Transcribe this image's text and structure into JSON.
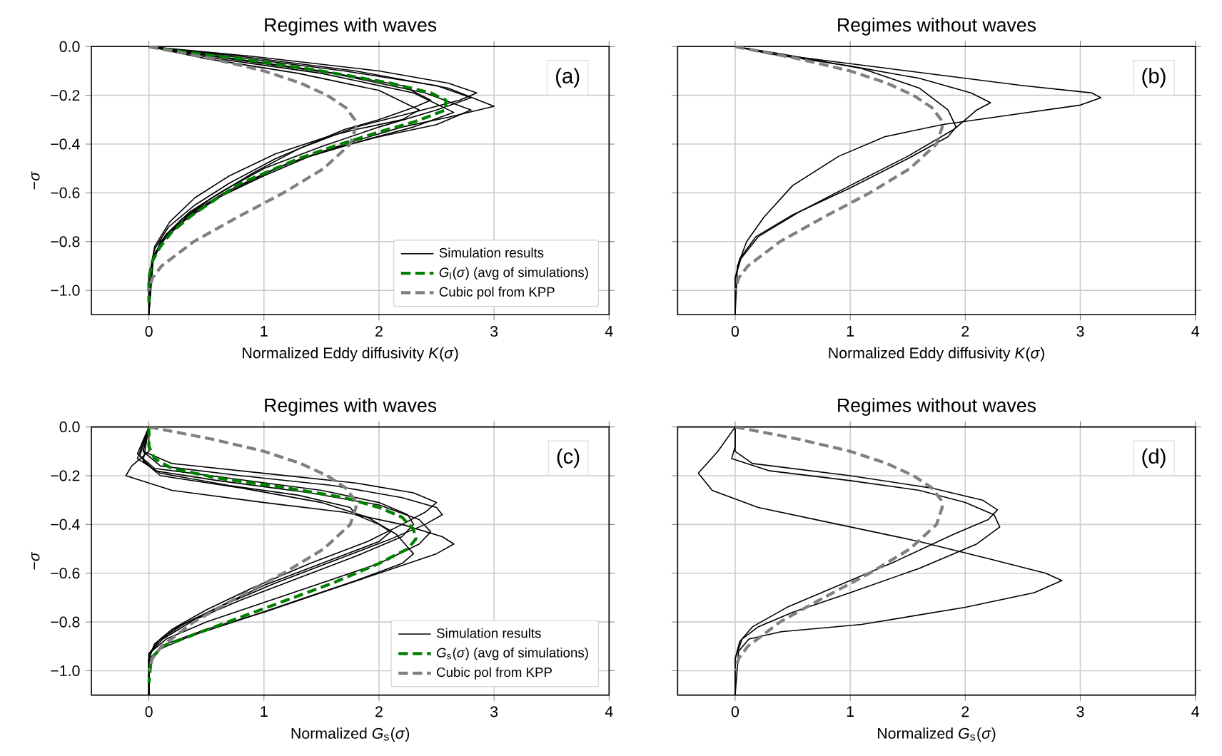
{
  "chart_data": [
    {
      "type": "line",
      "title": "Regimes with waves",
      "xlabel": "Normalized Eddy diffusivity *K*(*σ*)",
      "ylabel": "−*σ*",
      "annotations": [
        "(a)"
      ],
      "xlim": [
        -0.5,
        4
      ],
      "ylim": [
        -1.1,
        0
      ],
      "xticks": [
        0,
        1,
        2,
        3,
        4
      ],
      "yticks": [
        {
          "value": 0,
          "label": "0.0"
        },
        {
          "value": -0.2,
          "label": "−0.2"
        },
        {
          "value": -0.4,
          "label": "−0.4"
        },
        {
          "value": -0.6,
          "label": "−0.6"
        },
        {
          "value": -0.8,
          "label": "−0.8"
        },
        {
          "value": -1.0,
          "label": "−1.0"
        }
      ],
      "grid": true,
      "legend": "bottom right",
      "series": [
        {
          "name": "Simulation results",
          "color": "#000000",
          "line_style": "solid",
          "x": [
            0,
            0.8,
            1.8,
            2.6,
            3.0,
            2.6,
            2.2,
            1.7,
            1.2,
            0.8,
            0.45,
            0.2,
            0.06,
            0,
            0
          ],
          "values": [
            0,
            -0.04,
            -0.1,
            -0.17,
            -0.245,
            -0.29,
            -0.33,
            -0.4,
            -0.48,
            -0.57,
            -0.66,
            -0.75,
            -0.84,
            -0.95,
            -1.1
          ]
        },
        {
          "color": "#000000",
          "line_style": "solid",
          "x": [
            0,
            0.9,
            2.0,
            2.6,
            2.85,
            2.7,
            2.3,
            1.8,
            1.3,
            0.9,
            0.55,
            0.28,
            0.1,
            0.02,
            0
          ],
          "values": [
            0,
            -0.04,
            -0.1,
            -0.15,
            -0.19,
            -0.22,
            -0.27,
            -0.33,
            -0.42,
            -0.52,
            -0.62,
            -0.71,
            -0.8,
            -0.9,
            -1.1
          ]
        },
        {
          "color": "#000000",
          "line_style": "solid",
          "x": [
            0,
            0.7,
            1.7,
            2.5,
            2.8,
            2.5,
            2.0,
            1.5,
            1.0,
            0.65,
            0.35,
            0.15,
            0.04,
            0
          ],
          "values": [
            0,
            -0.04,
            -0.1,
            -0.16,
            -0.21,
            -0.26,
            -0.33,
            -0.41,
            -0.5,
            -0.59,
            -0.68,
            -0.77,
            -0.86,
            -1.1
          ]
        },
        {
          "color": "#000000",
          "line_style": "solid",
          "x": [
            0,
            0.6,
            1.5,
            2.3,
            2.65,
            2.3,
            1.9,
            1.4,
            1.0,
            0.6,
            0.32,
            0.13,
            0.03,
            0
          ],
          "values": [
            0,
            -0.05,
            -0.11,
            -0.19,
            -0.27,
            -0.33,
            -0.38,
            -0.45,
            -0.53,
            -0.62,
            -0.71,
            -0.79,
            -0.88,
            -1.1
          ]
        },
        {
          "color": "#000000",
          "line_style": "solid",
          "x": [
            0,
            0.6,
            1.5,
            2.2,
            2.45,
            2.3,
            2.0,
            1.7,
            1.55,
            1.1,
            0.7,
            0.4,
            0.17,
            0.05,
            0,
            0
          ],
          "values": [
            0,
            -0.04,
            -0.1,
            -0.16,
            -0.22,
            -0.25,
            -0.3,
            -0.34,
            -0.37,
            -0.46,
            -0.56,
            -0.65,
            -0.74,
            -0.83,
            -0.95,
            -1.1
          ]
        },
        {
          "color": "#000000",
          "line_style": "solid",
          "x": [
            0,
            0.5,
            1.3,
            2.0,
            2.35,
            2.2,
            1.8,
            1.55,
            1.1,
            0.7,
            0.4,
            0.18,
            0.05,
            0,
            0
          ],
          "values": [
            0,
            -0.05,
            -0.11,
            -0.18,
            -0.26,
            -0.3,
            -0.34,
            -0.37,
            -0.44,
            -0.53,
            -0.62,
            -0.72,
            -0.82,
            -0.95,
            -1.1
          ]
        },
        {
          "color": "#000000",
          "line_style": "solid",
          "x": [
            0,
            0.7,
            1.6,
            2.4,
            2.8,
            2.5,
            2.0,
            1.5,
            1.05,
            0.65,
            0.35,
            0.14,
            0.03,
            0
          ],
          "values": [
            0,
            -0.05,
            -0.11,
            -0.19,
            -0.26,
            -0.32,
            -0.37,
            -0.43,
            -0.51,
            -0.6,
            -0.69,
            -0.78,
            -0.87,
            -1.1
          ]
        },
        {
          "name": "*G*$_{l}$(*σ*) (avg of simulations)",
          "color": "#008000",
          "line_style": "dashed",
          "x": [
            0,
            0.35,
            0.8,
            1.5,
            2.1,
            2.45,
            2.58,
            2.58,
            2.3,
            2.0,
            1.6,
            1.3,
            1.05,
            0.8,
            0.6,
            0.38,
            0.2,
            0.1,
            0.03,
            0,
            0
          ],
          "values": [
            0,
            -0.025,
            -0.05,
            -0.1,
            -0.15,
            -0.19,
            -0.22,
            -0.26,
            -0.31,
            -0.35,
            -0.41,
            -0.46,
            -0.51,
            -0.56,
            -0.62,
            -0.69,
            -0.76,
            -0.82,
            -0.88,
            -0.95,
            -1.05
          ]
        },
        {
          "name": "Cubic pol from KPP",
          "color": "#808080",
          "line_style": "dashed",
          "x": [
            0,
            0.55,
            1.0,
            1.32,
            1.55,
            1.71,
            1.79,
            1.8,
            1.75,
            1.52,
            1.17,
            0.77,
            0.39,
            0.11,
            0.03,
            0
          ],
          "values": [
            0,
            -0.05,
            -0.1,
            -0.15,
            -0.2,
            -0.25,
            -0.3,
            -0.33,
            -0.4,
            -0.5,
            -0.6,
            -0.7,
            -0.8,
            -0.9,
            -0.95,
            -1.0
          ]
        }
      ]
    },
    {
      "type": "line",
      "title": "Regimes without waves",
      "xlabel": "Normalized Eddy diffusivity *K*(*σ*)",
      "annotations": [
        "(b)"
      ],
      "xlim": [
        -0.5,
        4
      ],
      "ylim": [
        -1.1,
        0
      ],
      "xticks": [
        0,
        1,
        2,
        3,
        4
      ],
      "yticks": [
        {
          "value": 0,
          "label": null
        },
        {
          "value": -0.2,
          "label": null
        },
        {
          "value": -0.4,
          "label": null
        },
        {
          "value": -0.6,
          "label": null
        },
        {
          "value": -0.8,
          "label": null
        },
        {
          "value": -1.0,
          "label": null
        }
      ],
      "grid": true,
      "tick_labels": "x",
      "series": [
        {
          "color": "#000000",
          "line_style": "solid",
          "x": [
            0,
            0.5,
            1.5,
            2.5,
            3.1,
            3.18,
            3.0,
            2.4,
            1.8,
            1.3,
            0.9,
            0.5,
            0.25,
            0.1,
            0.02,
            0
          ],
          "values": [
            0,
            -0.04,
            -0.1,
            -0.16,
            -0.19,
            -0.21,
            -0.24,
            -0.28,
            -0.32,
            -0.37,
            -0.45,
            -0.57,
            -0.7,
            -0.8,
            -0.9,
            -1.1
          ]
        },
        {
          "color": "#000000",
          "line_style": "solid",
          "x": [
            0,
            0.3,
            1.0,
            1.6,
            2.05,
            2.22,
            2.1,
            2.05,
            1.9,
            1.5,
            1.0,
            0.55,
            0.2,
            0.05,
            0,
            0
          ],
          "values": [
            0,
            -0.03,
            -0.08,
            -0.13,
            -0.19,
            -0.23,
            -0.26,
            -0.28,
            -0.34,
            -0.45,
            -0.57,
            -0.68,
            -0.78,
            -0.87,
            -0.95,
            -1.1
          ]
        },
        {
          "color": "#000000",
          "line_style": "solid",
          "x": [
            0,
            0.4,
            1.1,
            1.6,
            1.85,
            1.92,
            1.85,
            1.5,
            1.0,
            0.5,
            0.18,
            0.04,
            0,
            0
          ],
          "values": [
            0,
            -0.03,
            -0.09,
            -0.17,
            -0.26,
            -0.33,
            -0.37,
            -0.46,
            -0.58,
            -0.69,
            -0.78,
            -0.87,
            -0.95,
            -1.1
          ]
        },
        {
          "color": "#808080",
          "line_style": "dashed",
          "x": [
            0,
            0.55,
            1.0,
            1.32,
            1.55,
            1.71,
            1.79,
            1.8,
            1.75,
            1.52,
            1.17,
            0.77,
            0.39,
            0.11,
            0.03,
            0
          ],
          "values": [
            0,
            -0.05,
            -0.1,
            -0.15,
            -0.2,
            -0.25,
            -0.3,
            -0.33,
            -0.4,
            -0.5,
            -0.6,
            -0.7,
            -0.8,
            -0.9,
            -0.95,
            -1.0
          ]
        }
      ]
    },
    {
      "type": "line",
      "title": "Regimes with waves",
      "xlabel": "Normalized *G*$_{s}$(*σ*)",
      "ylabel": "−*σ*",
      "annotations": [
        "(c)"
      ],
      "xlim": [
        -0.5,
        4
      ],
      "ylim": [
        -1.1,
        0
      ],
      "xticks": [
        0,
        1,
        2,
        3,
        4
      ],
      "yticks": [
        {
          "value": 0,
          "label": "0.0"
        },
        {
          "value": -0.2,
          "label": "−0.2"
        },
        {
          "value": -0.4,
          "label": "−0.4"
        },
        {
          "value": -0.6,
          "label": "−0.6"
        },
        {
          "value": -0.8,
          "label": "−0.8"
        },
        {
          "value": -1.0,
          "label": "−1.0"
        }
      ],
      "grid": true,
      "legend": "bottom right",
      "series": [
        {
          "name": "Simulation results",
          "color": "#000000",
          "line_style": "solid",
          "x": [
            0,
            0,
            -0.15,
            -0.2,
            0.2,
            1.0,
            1.7,
            2.2,
            2.55,
            2.65,
            2.5,
            2.0,
            1.5,
            1.0,
            0.5,
            0.15,
            0,
            0
          ],
          "values": [
            0,
            -0.1,
            -0.16,
            -0.2,
            -0.26,
            -0.31,
            -0.35,
            -0.4,
            -0.45,
            -0.48,
            -0.52,
            -0.6,
            -0.68,
            -0.76,
            -0.83,
            -0.89,
            -0.95,
            -1.1
          ]
        },
        {
          "color": "#000000",
          "line_style": "solid",
          "x": [
            0,
            -0.05,
            0.1,
            0.8,
            1.6,
            2.2,
            2.5,
            2.55,
            2.4,
            2.1,
            1.6,
            1.1,
            0.65,
            0.3,
            0.1,
            0,
            0
          ],
          "values": [
            0,
            -0.1,
            -0.16,
            -0.2,
            -0.24,
            -0.29,
            -0.33,
            -0.36,
            -0.4,
            -0.46,
            -0.55,
            -0.64,
            -0.73,
            -0.81,
            -0.87,
            -0.93,
            -1.1
          ]
        },
        {
          "color": "#000000",
          "line_style": "solid",
          "x": [
            0,
            -0.08,
            0.05,
            0.6,
            1.4,
            2.0,
            2.35,
            2.45,
            2.35,
            2.0,
            1.5,
            1.0,
            0.5,
            0.15,
            0,
            0
          ],
          "values": [
            0,
            -0.12,
            -0.18,
            -0.22,
            -0.27,
            -0.32,
            -0.38,
            -0.43,
            -0.48,
            -0.56,
            -0.64,
            -0.72,
            -0.8,
            -0.87,
            -0.93,
            -1.1
          ]
        },
        {
          "color": "#000000",
          "line_style": "solid",
          "x": [
            0,
            -0.1,
            0.1,
            0.7,
            1.3,
            1.75,
            1.8,
            2.0,
            2.1,
            2.0,
            1.5,
            1.0,
            0.6,
            0.25,
            0.05,
            0,
            0
          ],
          "values": [
            0,
            -0.13,
            -0.19,
            -0.24,
            -0.28,
            -0.33,
            -0.36,
            -0.4,
            -0.43,
            -0.47,
            -0.56,
            -0.65,
            -0.74,
            -0.82,
            -0.89,
            -0.95,
            -1.1
          ]
        },
        {
          "color": "#000000",
          "line_style": "solid",
          "x": [
            0,
            -0.05,
            0.2,
            1.0,
            1.8,
            2.3,
            2.5,
            2.4,
            2.2,
            1.9,
            1.4,
            0.9,
            0.5,
            0.2,
            0.05,
            0,
            0
          ],
          "values": [
            0,
            -0.1,
            -0.15,
            -0.19,
            -0.23,
            -0.27,
            -0.31,
            -0.35,
            -0.4,
            -0.47,
            -0.56,
            -0.66,
            -0.75,
            -0.83,
            -0.89,
            -0.95,
            -1.1
          ]
        },
        {
          "color": "#000000",
          "line_style": "solid",
          "x": [
            0,
            -0.05,
            0.1,
            0.8,
            1.5,
            1.9,
            2.15,
            2.3,
            2.2,
            1.8,
            1.3,
            0.8,
            0.35,
            0.1,
            0,
            0
          ],
          "values": [
            0,
            -0.14,
            -0.2,
            -0.25,
            -0.31,
            -0.37,
            -0.44,
            -0.52,
            -0.56,
            -0.63,
            -0.71,
            -0.79,
            -0.86,
            -0.91,
            -0.96,
            -1.1
          ]
        },
        {
          "color": "#000000",
          "line_style": "solid",
          "x": [
            0,
            -0.1,
            0.05,
            0.7,
            1.5,
            2.0,
            2.25,
            2.3,
            2.2,
            1.8,
            1.3,
            0.8,
            0.4,
            0.12,
            0,
            0
          ],
          "values": [
            0,
            -0.11,
            -0.17,
            -0.21,
            -0.26,
            -0.31,
            -0.36,
            -0.4,
            -0.45,
            -0.53,
            -0.62,
            -0.71,
            -0.79,
            -0.87,
            -0.93,
            -1.1
          ]
        },
        {
          "name": "*G*$_{s}$(*σ*) (avg of simulations)",
          "color": "#008000",
          "line_style": "dashed",
          "x": [
            0,
            0,
            0.05,
            0.2,
            0.6,
            1.2,
            1.7,
            2.0,
            2.2,
            2.3,
            2.32,
            2.25,
            2.0,
            1.6,
            1.2,
            0.8,
            0.4,
            0.12,
            0.02,
            0
          ],
          "values": [
            0,
            -0.08,
            -0.13,
            -0.17,
            -0.21,
            -0.25,
            -0.29,
            -0.33,
            -0.37,
            -0.42,
            -0.46,
            -0.5,
            -0.56,
            -0.64,
            -0.71,
            -0.78,
            -0.85,
            -0.9,
            -0.95,
            -1.05
          ]
        },
        {
          "name": "Cubic pol from KPP",
          "color": "#808080",
          "line_style": "dashed",
          "x": [
            0,
            0.55,
            1.0,
            1.32,
            1.55,
            1.71,
            1.79,
            1.8,
            1.75,
            1.52,
            1.17,
            0.77,
            0.39,
            0.11,
            0.03,
            0
          ],
          "values": [
            0,
            -0.05,
            -0.1,
            -0.15,
            -0.2,
            -0.25,
            -0.3,
            -0.33,
            -0.4,
            -0.5,
            -0.6,
            -0.7,
            -0.8,
            -0.9,
            -0.95,
            -1.0
          ]
        }
      ]
    },
    {
      "type": "line",
      "title": "Regimes without waves",
      "xlabel": "Normalized *G*$_{s}$(*σ*)",
      "annotations": [
        "(d)"
      ],
      "xlim": [
        -0.5,
        4
      ],
      "ylim": [
        -1.1,
        0
      ],
      "xticks": [
        0,
        1,
        2,
        3,
        4
      ],
      "yticks": [
        {
          "value": 0,
          "label": null
        },
        {
          "value": -0.2,
          "label": null
        },
        {
          "value": -0.4,
          "label": null
        },
        {
          "value": -0.6,
          "label": null
        },
        {
          "value": -0.8,
          "label": null
        },
        {
          "value": -1.0,
          "label": null
        }
      ],
      "grid": true,
      "tick_labels": "x",
      "series": [
        {
          "color": "#000000",
          "line_style": "solid",
          "x": [
            0,
            -0.15,
            -0.32,
            -0.2,
            0.2,
            0.9,
            1.6,
            2.2,
            2.7,
            2.84,
            2.6,
            2.0,
            1.1,
            0.4,
            0.12,
            0.03,
            0
          ],
          "values": [
            0,
            -0.1,
            -0.19,
            -0.26,
            -0.33,
            -0.4,
            -0.47,
            -0.54,
            -0.6,
            -0.63,
            -0.68,
            -0.74,
            -0.81,
            -0.84,
            -0.87,
            -0.92,
            -1.1
          ]
        },
        {
          "color": "#000000",
          "line_style": "solid",
          "x": [
            0,
            0,
            -0.03,
            0.3,
            1.0,
            1.6,
            2.0,
            2.25,
            2.3,
            2.1,
            1.6,
            1.0,
            0.5,
            0.2,
            0.06,
            0,
            0
          ],
          "values": [
            0,
            -0.08,
            -0.13,
            -0.18,
            -0.22,
            -0.26,
            -0.31,
            -0.36,
            -0.41,
            -0.48,
            -0.58,
            -0.68,
            -0.76,
            -0.82,
            -0.87,
            -0.95,
            -1.1
          ]
        },
        {
          "color": "#000000",
          "line_style": "solid",
          "x": [
            0,
            0,
            0.15,
            1.0,
            1.7,
            2.15,
            2.28,
            2.2,
            1.9,
            1.4,
            0.9,
            0.45,
            0.15,
            0.04,
            0,
            0
          ],
          "values": [
            0,
            -0.1,
            -0.15,
            -0.2,
            -0.25,
            -0.3,
            -0.34,
            -0.38,
            -0.44,
            -0.55,
            -0.65,
            -0.74,
            -0.82,
            -0.88,
            -0.95,
            -1.1
          ]
        },
        {
          "color": "#808080",
          "line_style": "dashed",
          "x": [
            0,
            0.55,
            1.0,
            1.32,
            1.55,
            1.71,
            1.79,
            1.8,
            1.75,
            1.52,
            1.17,
            0.77,
            0.39,
            0.11,
            0.03,
            0
          ],
          "values": [
            0,
            -0.05,
            -0.1,
            -0.15,
            -0.2,
            -0.25,
            -0.3,
            -0.33,
            -0.4,
            -0.5,
            -0.6,
            -0.7,
            -0.8,
            -0.9,
            -0.95,
            -1.0
          ]
        }
      ]
    }
  ]
}
